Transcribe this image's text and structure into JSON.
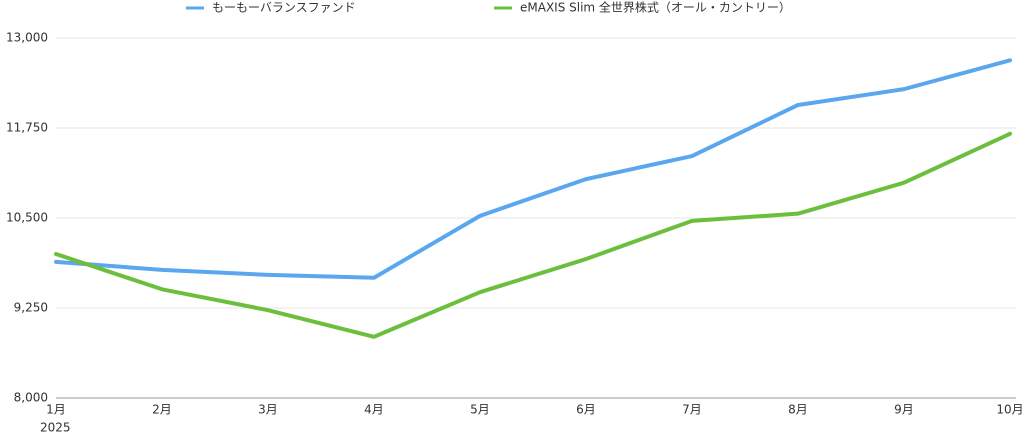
{
  "chart_data": {
    "type": "line",
    "categories": [
      "1月",
      "2月",
      "3月",
      "4月",
      "5月",
      "6月",
      "7月",
      "8月",
      "9月",
      "10月"
    ],
    "first_category_sublabel": "2025",
    "series": [
      {
        "name": "もーもーバランスファンド",
        "color": "#5aa7f0",
        "values": [
          9890,
          9780,
          9710,
          9670,
          10530,
          11040,
          11360,
          12070,
          12290,
          12690
        ]
      },
      {
        "name": "eMAXIS Slim 全世界株式（オール・カントリー）",
        "color": "#6bbf3d",
        "values": [
          10000,
          9510,
          9220,
          8850,
          9470,
          9930,
          10460,
          10560,
          10990,
          11670
        ]
      }
    ],
    "ylim": [
      8000,
      13000
    ],
    "yticks": [
      {
        "value": 8000,
        "label": "8,000"
      },
      {
        "value": 9250,
        "label": "9,250"
      },
      {
        "value": 10500,
        "label": "10,500"
      },
      {
        "value": 11750,
        "label": "11,750"
      },
      {
        "value": 13000,
        "label": "13,000"
      }
    ],
    "grid": true,
    "legend": "top"
  }
}
